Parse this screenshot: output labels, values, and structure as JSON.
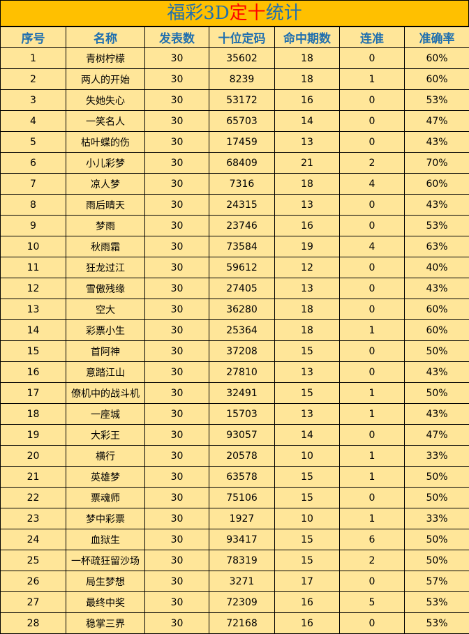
{
  "title": {
    "part1": "福彩3D",
    "part2": "定十",
    "part3": "统计"
  },
  "colors": {
    "title_bg": "#FFC000",
    "table_bg": "#FFE699",
    "header_text": "#1F6FAF",
    "highlight": "#FF0000"
  },
  "headers": [
    "序号",
    "名称",
    "发表数",
    "十位定码",
    "命中期数",
    "连准",
    "准确率"
  ],
  "rows": [
    [
      "1",
      "青树柠檬",
      "30",
      "35602",
      "18",
      "0",
      "60%"
    ],
    [
      "2",
      "两人的开始",
      "30",
      "8239",
      "18",
      "1",
      "60%"
    ],
    [
      "3",
      "失她失心",
      "30",
      "53172",
      "16",
      "0",
      "53%"
    ],
    [
      "4",
      "一笑名人",
      "30",
      "65703",
      "14",
      "0",
      "47%"
    ],
    [
      "5",
      "枯叶蝶的伤",
      "30",
      "17459",
      "13",
      "0",
      "43%"
    ],
    [
      "6",
      "小儿彩梦",
      "30",
      "68409",
      "21",
      "2",
      "70%"
    ],
    [
      "7",
      "凉人梦",
      "30",
      "7316",
      "18",
      "4",
      "60%"
    ],
    [
      "8",
      "雨后晴天",
      "30",
      "24315",
      "13",
      "0",
      "43%"
    ],
    [
      "9",
      "梦雨",
      "30",
      "23746",
      "16",
      "0",
      "53%"
    ],
    [
      "10",
      "秋雨霜",
      "30",
      "73584",
      "19",
      "4",
      "63%"
    ],
    [
      "11",
      "狂龙过江",
      "30",
      "59612",
      "12",
      "0",
      "40%"
    ],
    [
      "12",
      "雪傲残缘",
      "30",
      "27405",
      "13",
      "0",
      "43%"
    ],
    [
      "13",
      "空大",
      "30",
      "36280",
      "18",
      "0",
      "60%"
    ],
    [
      "14",
      "彩票小生",
      "30",
      "25364",
      "18",
      "1",
      "60%"
    ],
    [
      "15",
      "首阿神",
      "30",
      "37208",
      "15",
      "0",
      "50%"
    ],
    [
      "16",
      "意踏江山",
      "30",
      "27810",
      "13",
      "0",
      "43%"
    ],
    [
      "17",
      "僚机中的战斗机",
      "30",
      "32491",
      "15",
      "1",
      "50%"
    ],
    [
      "18",
      "一座城",
      "30",
      "15703",
      "13",
      "1",
      "43%"
    ],
    [
      "19",
      "大彩王",
      "30",
      "93057",
      "14",
      "0",
      "47%"
    ],
    [
      "20",
      "横行",
      "30",
      "20578",
      "10",
      "1",
      "33%"
    ],
    [
      "21",
      "英雄梦",
      "30",
      "63578",
      "15",
      "1",
      "50%"
    ],
    [
      "22",
      "票魂师",
      "30",
      "75106",
      "15",
      "0",
      "50%"
    ],
    [
      "23",
      "梦中彩票",
      "30",
      "1927",
      "10",
      "1",
      "33%"
    ],
    [
      "24",
      "血狱生",
      "30",
      "93417",
      "15",
      "6",
      "50%"
    ],
    [
      "25",
      "一杯疏狂留沙场",
      "30",
      "78319",
      "15",
      "2",
      "50%"
    ],
    [
      "26",
      "局生梦想",
      "30",
      "3271",
      "17",
      "0",
      "57%"
    ],
    [
      "27",
      "最终中奖",
      "30",
      "72309",
      "16",
      "5",
      "53%"
    ],
    [
      "28",
      "稳掌三界",
      "30",
      "72168",
      "16",
      "0",
      "53%"
    ]
  ]
}
